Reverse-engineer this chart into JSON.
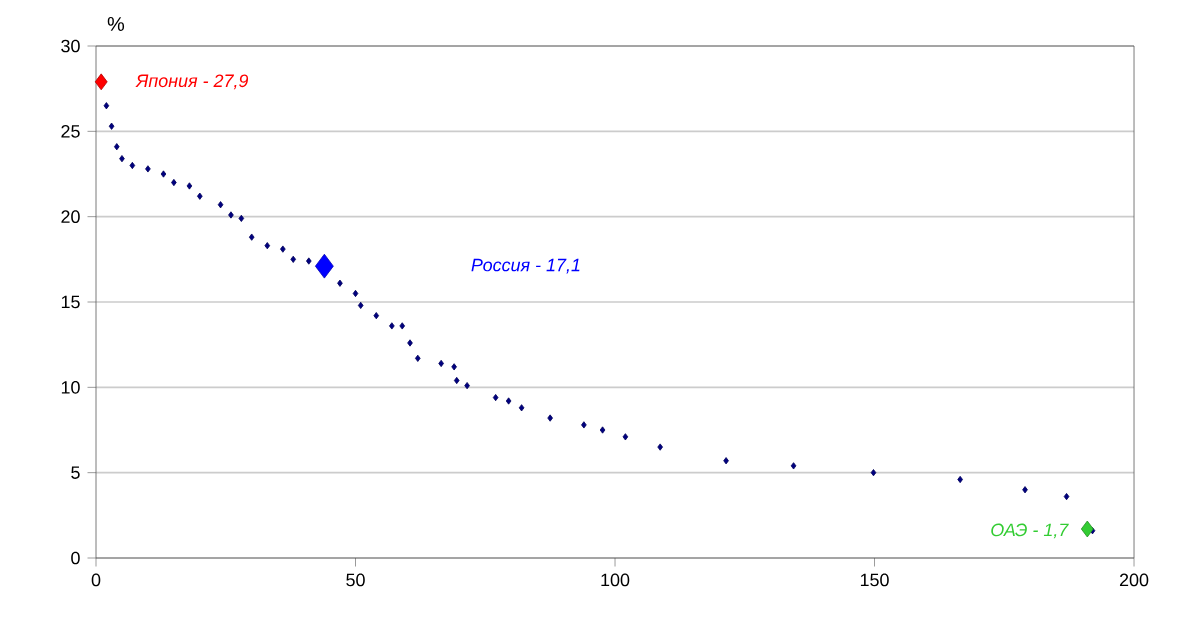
{
  "chart_data": {
    "type": "scatter",
    "ylabel": "%",
    "xlim": [
      0,
      200
    ],
    "ylim": [
      0,
      30
    ],
    "xticks": [
      0,
      50,
      100,
      150,
      200
    ],
    "yticks": [
      0,
      5,
      10,
      15,
      20,
      25,
      30
    ],
    "grid": "y",
    "marker": "diamond",
    "series": [
      {
        "color": "#000080",
        "x": [
          2,
          3,
          4,
          5,
          7,
          10,
          13,
          15,
          18,
          20,
          24,
          26,
          28,
          30,
          33,
          36,
          38,
          41,
          47,
          50,
          51,
          54,
          57,
          59,
          60.5,
          62,
          66.5,
          69,
          69.5,
          71.5,
          77,
          79.5,
          82,
          87.5,
          94,
          97.6,
          102,
          108.7,
          121.4,
          134.4,
          149.8,
          166.5,
          179,
          187,
          192
        ],
        "values": [
          26.5,
          25.3,
          24.1,
          23.4,
          23.0,
          22.8,
          22.5,
          22.0,
          21.8,
          21.2,
          20.7,
          20.1,
          19.9,
          18.8,
          18.3,
          18.1,
          17.5,
          17.4,
          16.1,
          15.5,
          14.8,
          14.2,
          13.6,
          13.6,
          12.6,
          11.7,
          11.4,
          11.2,
          10.4,
          10.1,
          9.4,
          9.2,
          8.8,
          8.2,
          7.8,
          7.5,
          7.1,
          6.5,
          5.7,
          5.4,
          5.0,
          4.6,
          4.0,
          3.6,
          1.6
        ]
      },
      {
        "name": "Япония - 27,9",
        "color": "#ff0000",
        "x": [
          1
        ],
        "values": [
          27.9
        ]
      },
      {
        "name": "Россия - 17,1",
        "color": "#0000ff",
        "x": [
          44
        ],
        "values": [
          17.1
        ]
      },
      {
        "name": "ОАЭ - 1,7",
        "color": "#33cc33",
        "x": [
          191
        ],
        "values": [
          1.7
        ]
      }
    ]
  }
}
